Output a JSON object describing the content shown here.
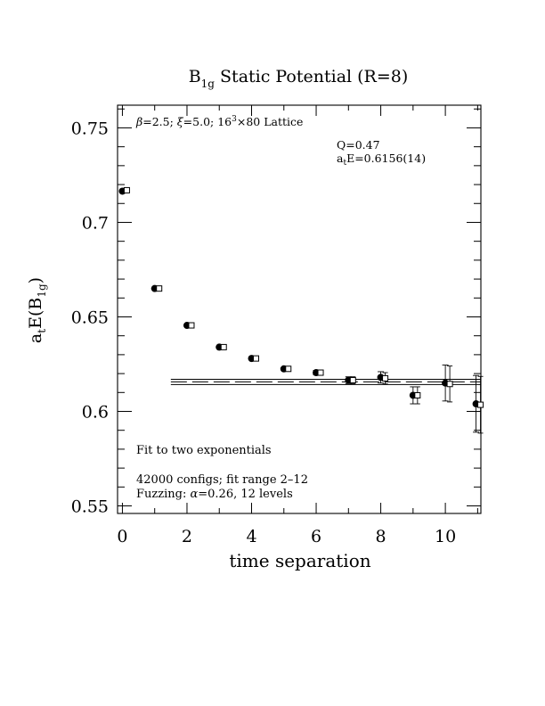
{
  "chart_data": {
    "type": "scatter",
    "title": {
      "main": "B",
      "main_sub": "1g",
      "rest": " Static Potential (R=8)"
    },
    "xlabel": "time separation",
    "ylabel": {
      "a": "a",
      "a_sub": "t",
      "e_open": "E(B",
      "e_sub": "1g",
      "close": ")"
    },
    "xlim": [
      -0.15,
      11.1
    ],
    "ylim": [
      0.546,
      0.762
    ],
    "x_ticks": [
      0,
      2,
      4,
      6,
      8,
      10
    ],
    "x_tick_labels": [
      "0",
      "2",
      "4",
      "6",
      "8",
      "10"
    ],
    "y_ticks": [
      0.55,
      0.6,
      0.65,
      0.7,
      0.75
    ],
    "y_tick_labels": [
      "0.55",
      "0.6",
      "0.65",
      "0.7",
      "0.75"
    ],
    "series": [
      {
        "marker": "filled-circle",
        "points": [
          {
            "x": 0,
            "y": 0.7165,
            "err": 0.0005
          },
          {
            "x": 1,
            "y": 0.665,
            "err": 0.0005
          },
          {
            "x": 2,
            "y": 0.6455,
            "err": 0.0006
          },
          {
            "x": 3,
            "y": 0.634,
            "err": 0.0007
          },
          {
            "x": 4,
            "y": 0.628,
            "err": 0.0008
          },
          {
            "x": 5,
            "y": 0.6225,
            "err": 0.0009
          },
          {
            "x": 6,
            "y": 0.6205,
            "err": 0.0012
          },
          {
            "x": 7,
            "y": 0.6165,
            "err": 0.0018
          },
          {
            "x": 8,
            "y": 0.618,
            "err": 0.003
          },
          {
            "x": 9,
            "y": 0.6085,
            "err": 0.0045
          },
          {
            "x": 10,
            "y": 0.615,
            "err": 0.0095
          },
          {
            "x": 10.95,
            "y": 0.604,
            "err": 0.015
          }
        ]
      },
      {
        "marker": "open-square",
        "points": [
          {
            "x": 0,
            "y": 0.717
          },
          {
            "x": 1,
            "y": 0.665
          },
          {
            "x": 2,
            "y": 0.6455
          },
          {
            "x": 3,
            "y": 0.634
          },
          {
            "x": 4,
            "y": 0.628
          },
          {
            "x": 5,
            "y": 0.6225
          },
          {
            "x": 6,
            "y": 0.6205
          },
          {
            "x": 7,
            "y": 0.6165
          },
          {
            "x": 8,
            "y": 0.6175
          },
          {
            "x": 9,
            "y": 0.6085
          },
          {
            "x": 10,
            "y": 0.6145
          },
          {
            "x": 10.95,
            "y": 0.6035
          }
        ]
      }
    ],
    "fit": {
      "x_range": [
        1.5,
        11.1
      ],
      "value": 0.6156,
      "error": 0.0014
    },
    "annotations": {
      "lattice": {
        "beta": "β",
        "p1": "=2.5; ",
        "xi": "ξ",
        "p2": "=5.0; 16",
        "sup": "3",
        "p3": "×80 Lattice"
      },
      "q": "Q=0.47",
      "energy": {
        "a": "a",
        "a_sub": "t",
        "rest": "E=0.6156(14)"
      },
      "fit_label": "Fit to two exponentials",
      "configs": "42000 configs; fit range 2–12",
      "fuzzing": {
        "pre": "Fuzzing: ",
        "alpha": "α",
        "post": "=0.26, 12 levels"
      }
    }
  }
}
